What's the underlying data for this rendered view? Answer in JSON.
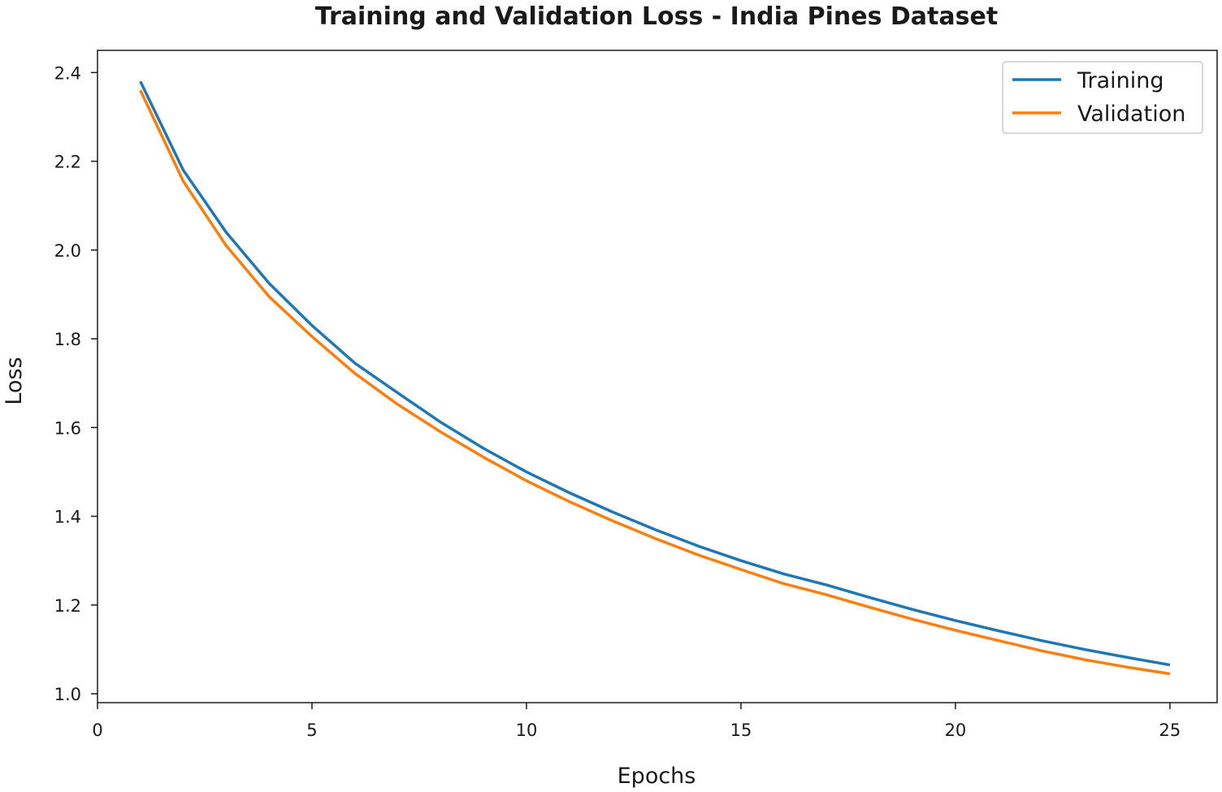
{
  "chart_data": {
    "type": "line",
    "title": "Training and Validation Loss - India Pines Dataset",
    "xlabel": "Epochs",
    "ylabel": "Loss",
    "xlim": [
      0,
      26.1
    ],
    "ylim": [
      0.98,
      2.45
    ],
    "xticks": [
      0,
      5,
      10,
      15,
      20,
      25
    ],
    "yticks": [
      1.0,
      1.2,
      1.4,
      1.6,
      1.8,
      2.0,
      2.2,
      2.4
    ],
    "grid": false,
    "legend_position": "top-right",
    "x": [
      1,
      2,
      3,
      4,
      5,
      6,
      7,
      8,
      9,
      10,
      11,
      12,
      13,
      14,
      15,
      16,
      17,
      18,
      19,
      20,
      21,
      22,
      23,
      24,
      25
    ],
    "series": [
      {
        "name": "Training",
        "color": "#1f77b4",
        "values": [
          2.38,
          2.18,
          2.04,
          1.925,
          1.83,
          1.745,
          1.678,
          1.612,
          1.553,
          1.5,
          1.453,
          1.41,
          1.37,
          1.333,
          1.3,
          1.27,
          1.245,
          1.217,
          1.19,
          1.165,
          1.142,
          1.12,
          1.1,
          1.082,
          1.065
        ]
      },
      {
        "name": "Validation",
        "color": "#ff7f0e",
        "values": [
          2.36,
          2.155,
          2.01,
          1.895,
          1.805,
          1.722,
          1.652,
          1.59,
          1.533,
          1.48,
          1.433,
          1.39,
          1.35,
          1.313,
          1.28,
          1.248,
          1.223,
          1.195,
          1.168,
          1.143,
          1.12,
          1.097,
          1.077,
          1.06,
          1.045
        ]
      }
    ]
  }
}
